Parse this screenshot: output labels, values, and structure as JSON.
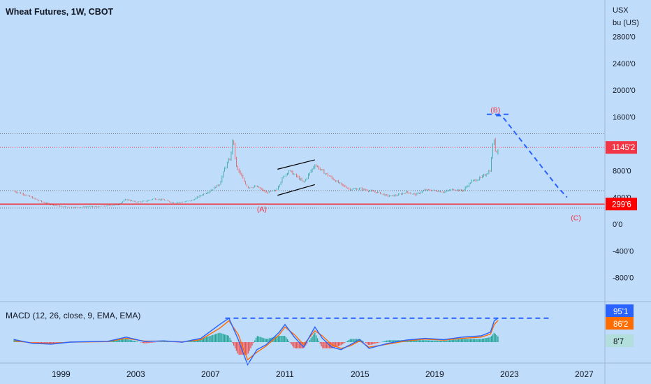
{
  "header": {
    "title": "Wheat Futures, 1W, CBOT",
    "unit_line1": "USX",
    "unit_line2": "bu (US)"
  },
  "macd": {
    "label": "MACD (12, 26, close, 9, EMA, EMA)",
    "badge_values": [
      "95'1",
      "86'2",
      "8'7"
    ],
    "badge_colors": [
      "#2962ff",
      "#ff6d00",
      "#b2dfdb"
    ]
  },
  "price_badges": [
    {
      "label": "1145'2",
      "price": 1145.25,
      "color": "#f23645"
    },
    {
      "label": "299'6",
      "price": 299.75,
      "color": "#ff0000"
    }
  ],
  "wave_labels": {
    "a": "(A)",
    "b": "(B)",
    "c": "(C)"
  },
  "colors": {
    "background": "#bfdcfb",
    "up_candle": "#26a69a",
    "down_candle": "#ef5350",
    "support_line": "#ff0000",
    "projection": "#2962ff",
    "macd_line": "#2962ff",
    "signal_line": "#ff6d00"
  },
  "chart_data": {
    "type": "line",
    "title": "Wheat Futures, 1W, CBOT",
    "ylabel": "USX bu (US)",
    "ylim": [
      -1150,
      3000
    ],
    "x_ticks": [
      "1999",
      "2003",
      "2007",
      "2011",
      "2015",
      "2019",
      "2023",
      "2027"
    ],
    "y_ticks": [
      "2800'0",
      "2400'0",
      "2000'0",
      "1600'0",
      "1200'0",
      "800'0",
      "400'0",
      "0'0",
      "-400'0",
      "-800'0"
    ],
    "y_tick_values": [
      2800,
      2400,
      2000,
      1600,
      1200,
      800,
      400,
      0,
      -400,
      -800
    ],
    "price_points": [
      [
        1996.5,
        490
      ],
      [
        1997.0,
        450
      ],
      [
        1997.5,
        390
      ],
      [
        1998.0,
        330
      ],
      [
        1998.5,
        290
      ],
      [
        1999.0,
        265
      ],
      [
        1999.5,
        255
      ],
      [
        2000.0,
        250
      ],
      [
        2000.5,
        265
      ],
      [
        2001.0,
        260
      ],
      [
        2001.5,
        275
      ],
      [
        2002.0,
        285
      ],
      [
        2002.5,
        370
      ],
      [
        2003.0,
        330
      ],
      [
        2003.5,
        340
      ],
      [
        2004.0,
        380
      ],
      [
        2004.5,
        360
      ],
      [
        2005.0,
        320
      ],
      [
        2005.5,
        330
      ],
      [
        2006.0,
        350
      ],
      [
        2006.5,
        430
      ],
      [
        2007.0,
        500
      ],
      [
        2007.5,
        600
      ],
      [
        2007.8,
        850
      ],
      [
        2008.1,
        1000
      ],
      [
        2008.2,
        1300
      ],
      [
        2008.4,
        850
      ],
      [
        2008.7,
        700
      ],
      [
        2009.0,
        550
      ],
      [
        2009.5,
        560
      ],
      [
        2010.0,
        470
      ],
      [
        2010.5,
        500
      ],
      [
        2010.9,
        700
      ],
      [
        2011.2,
        800
      ],
      [
        2011.6,
        720
      ],
      [
        2012.0,
        620
      ],
      [
        2012.6,
        890
      ],
      [
        2013.0,
        790
      ],
      [
        2013.5,
        690
      ],
      [
        2014.0,
        590
      ],
      [
        2014.5,
        520
      ],
      [
        2015.0,
        530
      ],
      [
        2015.5,
        500
      ],
      [
        2016.0,
        470
      ],
      [
        2016.5,
        420
      ],
      [
        2017.0,
        430
      ],
      [
        2017.5,
        480
      ],
      [
        2018.0,
        440
      ],
      [
        2018.5,
        510
      ],
      [
        2019.0,
        500
      ],
      [
        2019.5,
        480
      ],
      [
        2020.0,
        520
      ],
      [
        2020.5,
        500
      ],
      [
        2021.0,
        640
      ],
      [
        2021.5,
        690
      ],
      [
        2022.0,
        810
      ],
      [
        2022.15,
        1300
      ],
      [
        2022.3,
        1050
      ],
      [
        2022.4,
        1145.25
      ]
    ],
    "support_level": 299.75,
    "current_price_line": 1145.25,
    "resistance_level": 1350,
    "range_floor": 240,
    "mid_level": 500,
    "channel": {
      "upper": [
        [
          2010.6,
          820
        ],
        [
          2012.6,
          960
        ]
      ],
      "lower": [
        [
          2010.6,
          430
        ],
        [
          2012.6,
          590
        ]
      ]
    },
    "projection": [
      [
        2022.3,
        1620
      ],
      [
        2022.6,
        1620
      ],
      [
        2025.6,
        550
      ],
      [
        2026.1,
        400
      ]
    ],
    "projection_cap": [
      [
        2021.8,
        1640
      ],
      [
        2023.0,
        1640
      ]
    ],
    "waves": [
      {
        "label": "(A)",
        "x": 2009.8,
        "y": 230
      },
      {
        "label": "(B)",
        "x": 2022.3,
        "y": 1710
      },
      {
        "label": "(C)",
        "x": 2026.6,
        "y": 100
      }
    ],
    "macd_series": [
      [
        1996.5,
        10
      ],
      [
        1997.5,
        -5
      ],
      [
        1998.5,
        -8
      ],
      [
        1999.5,
        0
      ],
      [
        2000.5,
        2
      ],
      [
        2001.5,
        3
      ],
      [
        2002.5,
        20
      ],
      [
        2003.5,
        2
      ],
      [
        2004.5,
        5
      ],
      [
        2005.5,
        0
      ],
      [
        2006.5,
        15
      ],
      [
        2007.5,
        70
      ],
      [
        2008.0,
        95
      ],
      [
        2008.5,
        10
      ],
      [
        2009.0,
        -90
      ],
      [
        2009.5,
        -30
      ],
      [
        2010.0,
        -10
      ],
      [
        2010.7,
        40
      ],
      [
        2011.0,
        70
      ],
      [
        2011.5,
        20
      ],
      [
        2012.0,
        -20
      ],
      [
        2012.6,
        60
      ],
      [
        2013.0,
        15
      ],
      [
        2013.5,
        -20
      ],
      [
        2014.0,
        -30
      ],
      [
        2014.5,
        -10
      ],
      [
        2015.0,
        10
      ],
      [
        2015.5,
        -25
      ],
      [
        2016.5,
        -5
      ],
      [
        2017.5,
        8
      ],
      [
        2018.5,
        15
      ],
      [
        2019.5,
        10
      ],
      [
        2020.5,
        20
      ],
      [
        2021.5,
        25
      ],
      [
        2022.0,
        40
      ],
      [
        2022.2,
        85
      ],
      [
        2022.4,
        95.1
      ]
    ],
    "signal_series": [
      [
        1996.5,
        5
      ],
      [
        1997.5,
        -3
      ],
      [
        1998.5,
        -6
      ],
      [
        1999.5,
        0
      ],
      [
        2000.5,
        1
      ],
      [
        2001.5,
        2
      ],
      [
        2002.5,
        15
      ],
      [
        2003.5,
        4
      ],
      [
        2004.5,
        4
      ],
      [
        2005.5,
        1
      ],
      [
        2006.5,
        10
      ],
      [
        2007.5,
        55
      ],
      [
        2008.0,
        85
      ],
      [
        2008.5,
        30
      ],
      [
        2009.0,
        -70
      ],
      [
        2009.5,
        -40
      ],
      [
        2010.0,
        -15
      ],
      [
        2010.7,
        30
      ],
      [
        2011.0,
        60
      ],
      [
        2011.5,
        30
      ],
      [
        2012.0,
        -10
      ],
      [
        2012.6,
        45
      ],
      [
        2013.0,
        25
      ],
      [
        2013.5,
        -10
      ],
      [
        2014.0,
        -25
      ],
      [
        2014.5,
        -15
      ],
      [
        2015.0,
        5
      ],
      [
        2015.5,
        -20
      ],
      [
        2016.5,
        -8
      ],
      [
        2017.5,
        5
      ],
      [
        2018.5,
        12
      ],
      [
        2019.5,
        8
      ],
      [
        2020.5,
        15
      ],
      [
        2021.5,
        20
      ],
      [
        2022.0,
        32
      ],
      [
        2022.2,
        70
      ],
      [
        2022.4,
        86.2
      ]
    ],
    "macd_dashed_level": 95.1,
    "macd_ylim": [
      -110,
      130
    ]
  }
}
